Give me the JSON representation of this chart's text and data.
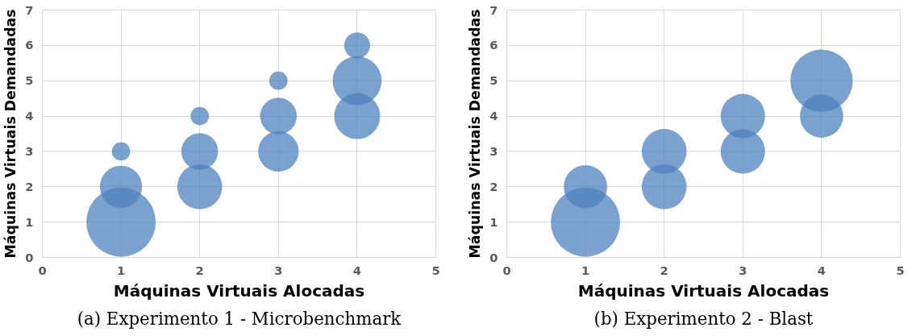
{
  "chart_data": [
    {
      "type": "bubble",
      "xlabel": "Máquinas Virtuais Alocadas",
      "ylabel": "Máquinas Virtuais Demandadas",
      "annotations": [
        "(a) Experimento 1 - Microbenchmark"
      ],
      "xlim": [
        0,
        5
      ],
      "ylim": [
        0,
        7
      ],
      "xticks": [
        0,
        1,
        2,
        3,
        4,
        5
      ],
      "yticks": [
        0,
        1,
        2,
        3,
        4,
        5,
        6,
        7
      ],
      "grid": true,
      "series": [
        {
          "color": "#4f81bd",
          "x": [
            1,
            1,
            1,
            2,
            2,
            2,
            3,
            3,
            3,
            4,
            4,
            4
          ],
          "values": [
            1,
            2,
            3,
            2,
            3,
            4,
            3,
            4,
            5,
            4,
            5,
            6
          ],
          "sizes": [
            1,
            0.37,
            0.07,
            0.42,
            0.28,
            0.07,
            0.34,
            0.28,
            0.07,
            0.44,
            0.5,
            0.14
          ]
        }
      ]
    },
    {
      "type": "bubble",
      "xlabel": "Máquinas Virtuais Alocadas",
      "ylabel": "Máquinas Virtuais Demandadas",
      "annotations": [
        "(b) Experimento 2 - Blast"
      ],
      "xlim": [
        0,
        5
      ],
      "ylim": [
        0,
        7
      ],
      "xticks": [
        0,
        1,
        2,
        3,
        4,
        5
      ],
      "yticks": [
        0,
        1,
        2,
        3,
        4,
        5,
        6,
        7
      ],
      "grid": true,
      "series": [
        {
          "color": "#4f81bd",
          "x": [
            1,
            1,
            2,
            2,
            3,
            3,
            4,
            4
          ],
          "values": [
            1,
            2,
            2,
            3,
            3,
            4,
            4,
            5
          ],
          "sizes": [
            1,
            0.39,
            0.42,
            0.42,
            0.41,
            0.41,
            0.39,
            0.81
          ]
        }
      ]
    }
  ]
}
